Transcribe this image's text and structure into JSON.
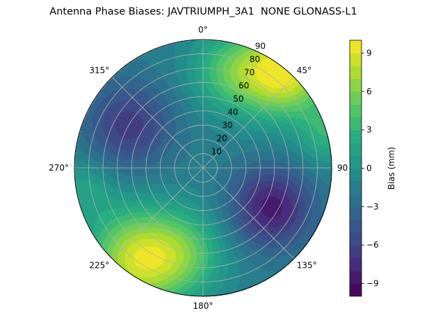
{
  "chart_data": {
    "type": "heatmap",
    "subtype": "polar-contour",
    "title": "Antenna Phase Biases: JAVTRIUMPH_3A1  NONE GLONASS-L1",
    "angular_ticks": [
      {
        "deg": 0,
        "label": "0°"
      },
      {
        "deg": 45,
        "label": "45°"
      },
      {
        "deg": 90,
        "label": "90"
      },
      {
        "deg": 135,
        "label": "135°"
      },
      {
        "deg": 180,
        "label": "180°"
      },
      {
        "deg": 225,
        "label": "225°"
      },
      {
        "deg": 270,
        "label": "270°"
      },
      {
        "deg": 315,
        "label": "315°"
      }
    ],
    "radial_ticks": [
      10,
      20,
      30,
      40,
      50,
      60,
      70,
      80,
      90
    ],
    "radial_range": [
      0,
      90
    ],
    "colorbar": {
      "label": "Bias (mm)",
      "range": [
        -10,
        10
      ],
      "ticks": [
        -9,
        -6,
        -3,
        0,
        3,
        6,
        9
      ],
      "tick_labels": [
        "−9",
        "−6",
        "−3",
        "0",
        "3",
        "6",
        "9"
      ],
      "levels": 20,
      "colormap": "viridis"
    },
    "field_estimate": {
      "base": -1.5,
      "features": [
        {
          "azimuth": 40,
          "zenith": 88,
          "amplitude": 11,
          "width": 22
        },
        {
          "azimuth": 15,
          "zenith": 70,
          "amplitude": 5,
          "width": 20
        },
        {
          "azimuth": 215,
          "zenith": 78,
          "amplitude": 10,
          "width": 25
        },
        {
          "azimuth": 190,
          "zenith": 60,
          "amplitude": 4,
          "width": 20
        },
        {
          "azimuth": 120,
          "zenith": 55,
          "amplitude": -7,
          "width": 20
        },
        {
          "azimuth": 300,
          "zenith": 60,
          "amplitude": -5,
          "width": 22
        },
        {
          "azimuth": 260,
          "zenith": 85,
          "amplitude": 3,
          "width": 15
        },
        {
          "azimuth": 75,
          "zenith": 90,
          "amplitude": 4,
          "width": 15
        }
      ]
    }
  }
}
